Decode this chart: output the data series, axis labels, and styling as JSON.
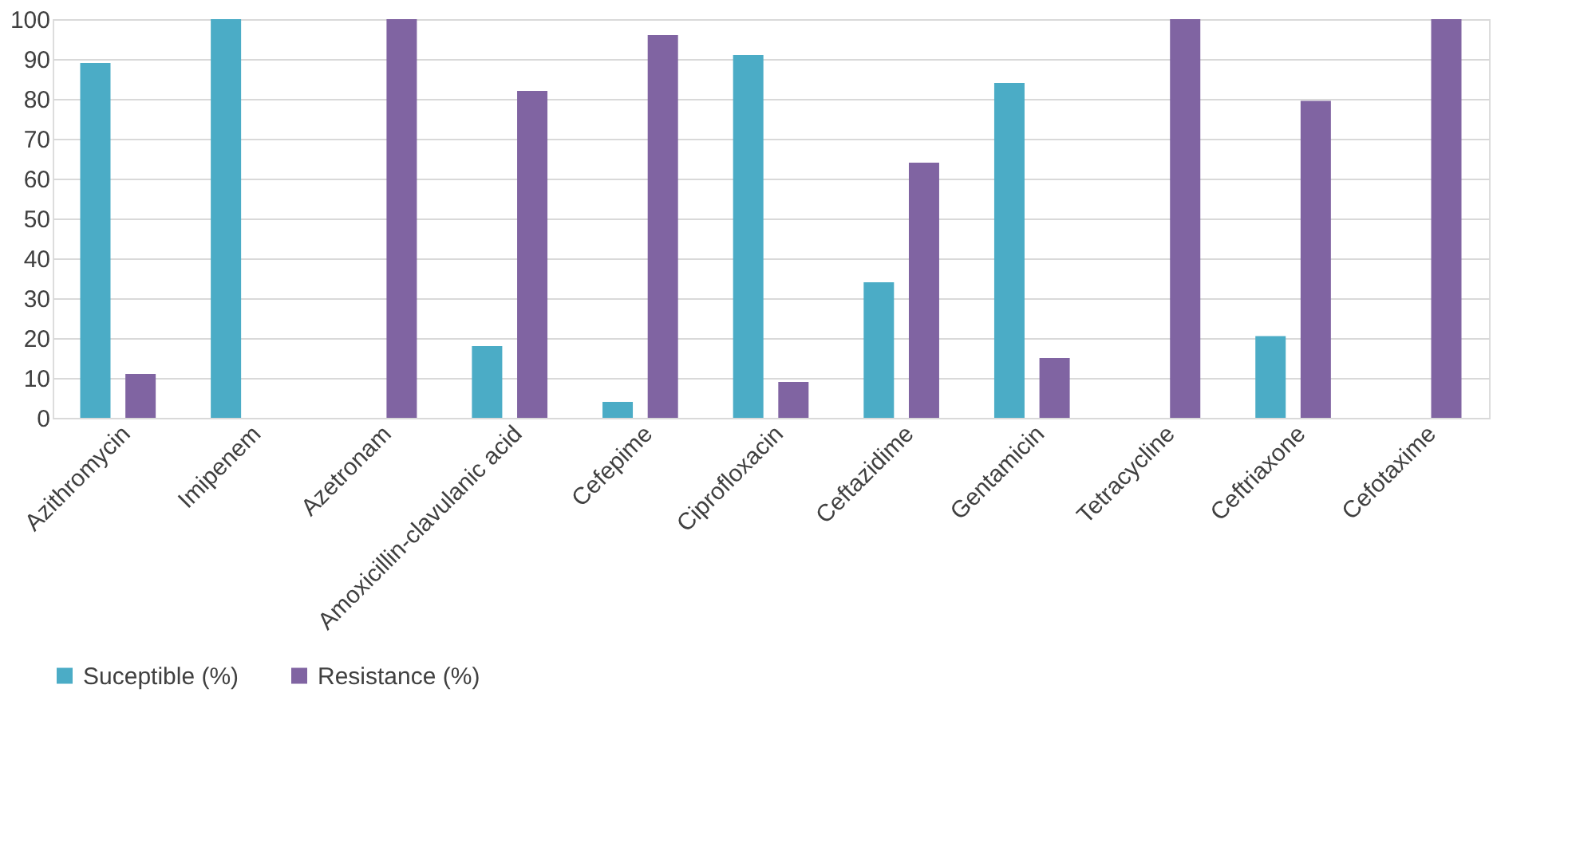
{
  "chart_data": {
    "type": "bar",
    "categories": [
      "Azithromycin",
      "Imipenem",
      "Azetronam",
      "Amoxicillin-clavulanic acid",
      "Cefepime",
      "Ciprofloxacin",
      "Ceftazidime",
      "Gentamicin",
      "Tetracycline",
      "Ceftriaxone",
      "Cefotaxime"
    ],
    "series": [
      {
        "name": "Suceptible (%)",
        "color": "#4bacc6",
        "values": [
          89,
          100,
          0,
          18,
          4,
          91,
          34,
          84,
          0,
          20.5,
          0
        ]
      },
      {
        "name": "Resistance (%)",
        "color": "#8064a2",
        "values": [
          11,
          0,
          100,
          82,
          96,
          9,
          64,
          15,
          100,
          79.5,
          100
        ]
      }
    ],
    "ylim": [
      0,
      100
    ],
    "yticks": [
      0,
      10,
      20,
      30,
      40,
      50,
      60,
      70,
      80,
      90,
      100
    ],
    "grid": "y",
    "legend": "bottom"
  }
}
